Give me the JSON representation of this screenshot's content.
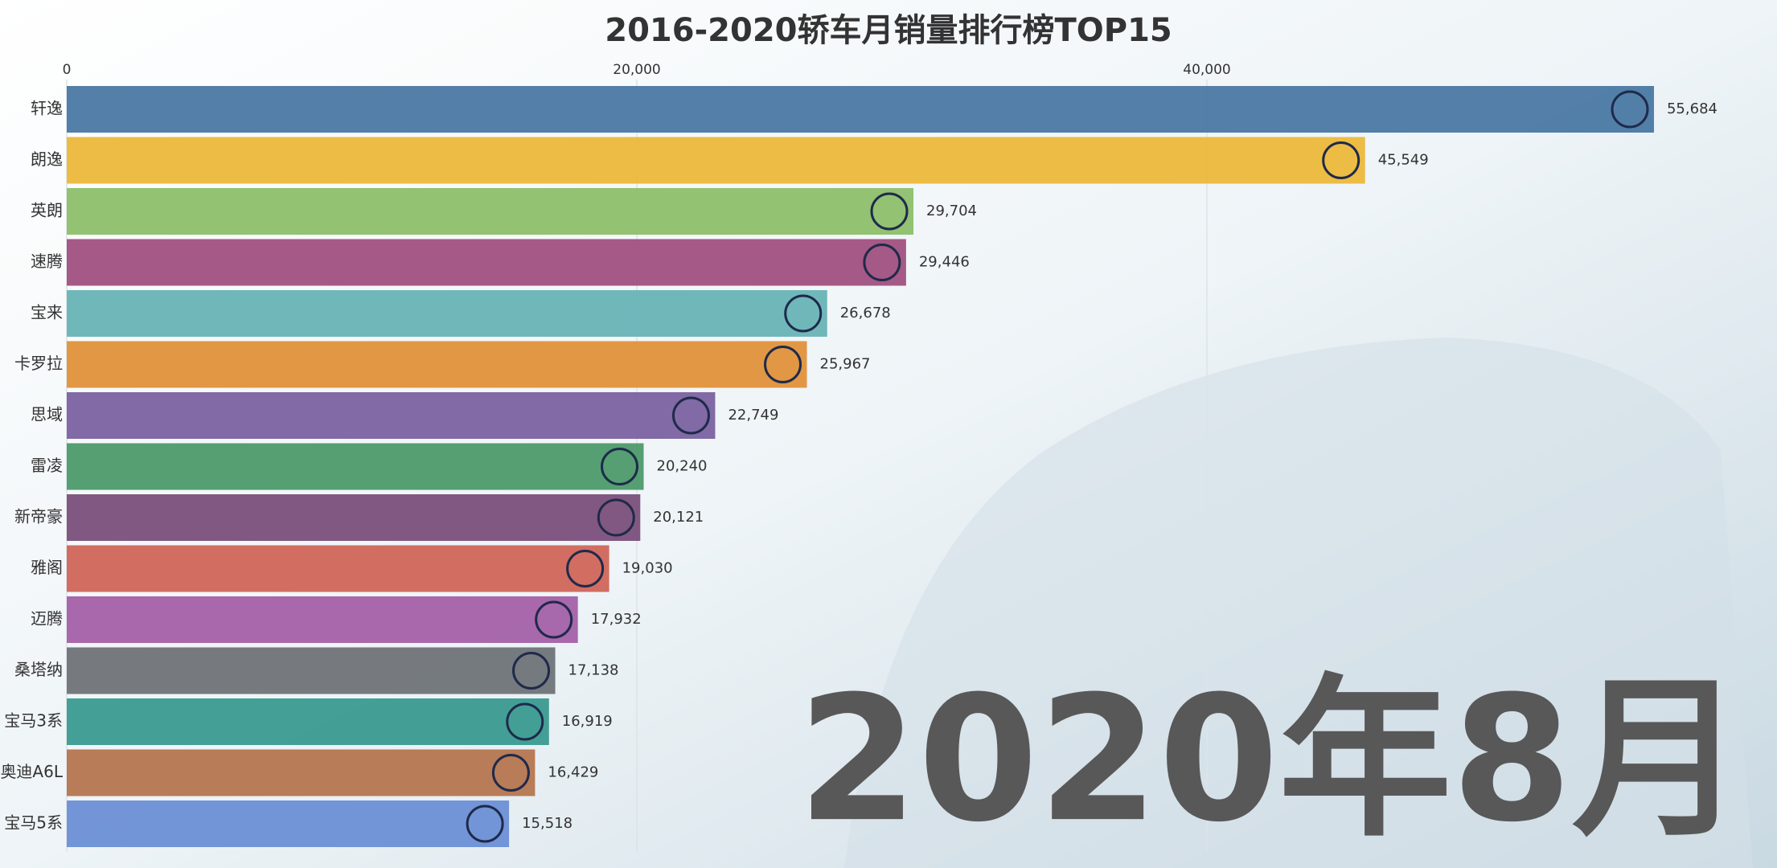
{
  "chart_data": {
    "type": "barh",
    "title": "2016-2020轿车月销量排行榜TOP15",
    "period": "2020年8月",
    "categories": [
      "轩逸",
      "朗逸",
      "英朗",
      "速腾",
      "宝来",
      "卡罗拉",
      "思域",
      "雷凌",
      "新帝豪",
      "雅阁",
      "迈腾",
      "桑塔纳",
      "宝马3系",
      "奥迪A6L",
      "宝马5系"
    ],
    "values": [
      55684,
      45549,
      29704,
      29446,
      26678,
      25967,
      22749,
      20240,
      20121,
      19030,
      17932,
      17138,
      16919,
      16429,
      15518
    ],
    "value_labels": [
      "55,684",
      "45,549",
      "29,704",
      "29,446",
      "26,678",
      "25,967",
      "22,749",
      "20,240",
      "20,121",
      "19,030",
      "17,932",
      "17,138",
      "16,919",
      "16,429",
      "15,518"
    ],
    "colors": [
      "#4a78a3",
      "#ebb83a",
      "#8cbf6a",
      "#a0507f",
      "#68b3b6",
      "#e0913a",
      "#7a62a0",
      "#4c9a6a",
      "#7a4f7a",
      "#d0655a",
      "#a460a8",
      "#6f7378",
      "#3a9a90",
      "#b5754f",
      "#6b8fd6"
    ],
    "xlim": [
      0,
      60000
    ],
    "xticks": [
      0,
      {
        "value": 20000,
        "label": "20,000"
      },
      {
        "value": 40000,
        "label": "40,000"
      }
    ],
    "grid": true
  }
}
